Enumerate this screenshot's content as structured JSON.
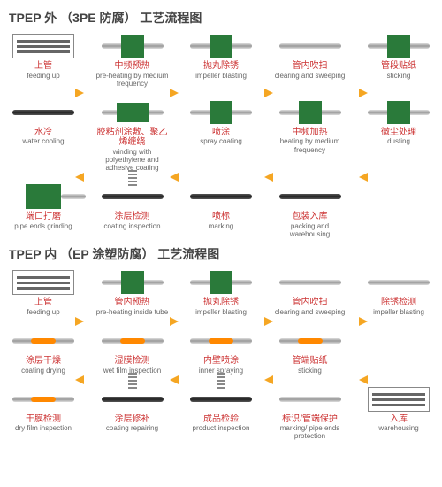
{
  "section1": {
    "title": "TPEP 外 （3PE 防腐） 工艺流程图",
    "rows": [
      [
        {
          "cn": "上管",
          "en": "feeding up",
          "icon": "rack"
        },
        {
          "cn": "中频预热",
          "en": "pre-heating by medium frequency",
          "icon": "pipe-block"
        },
        {
          "cn": "抛丸除锈",
          "en": "impeller blasting",
          "icon": "pipe-block"
        },
        {
          "cn": "管内吹扫",
          "en": "clearing and sweeping",
          "icon": "pipe"
        },
        {
          "cn": "管段贴纸",
          "en": "sticking",
          "icon": "pipe-block"
        }
      ],
      [
        {
          "cn": "水冷",
          "en": "water cooling",
          "icon": "pipe-dark"
        },
        {
          "cn": "胶粘剂涂敷、聚乙烯缠绕",
          "en": "winding with polyethylene and adhesive coating",
          "icon": "pipe-block2"
        },
        {
          "cn": "喷涂",
          "en": "spray coating",
          "icon": "pipe-block"
        },
        {
          "cn": "中频加热",
          "en": "heating by medium frequency",
          "icon": "pipe-block"
        },
        {
          "cn": "微尘处理",
          "en": "dusting",
          "icon": "pipe-block"
        }
      ],
      [
        {
          "cn": "端口打磨",
          "en": "pipe ends grinding",
          "icon": "machine"
        },
        {
          "cn": "涂层检测",
          "en": "coating inspection",
          "icon": "pipe-spring"
        },
        {
          "cn": "喷标",
          "en": "marking",
          "icon": "pipe-dark"
        },
        {
          "cn": "包装入库",
          "en": "packing and warehousing",
          "icon": "pipe-dark"
        },
        {
          "cn": "",
          "en": "",
          "icon": "none"
        }
      ]
    ],
    "arrow_dirs": [
      "r",
      "l",
      "r"
    ]
  },
  "section2": {
    "title": "TPEP 内 （EP 涂塑防腐） 工艺流程图",
    "rows": [
      [
        {
          "cn": "上管",
          "en": "feeding up",
          "icon": "rack"
        },
        {
          "cn": "管内预热",
          "en": "pre-heating inside tube",
          "icon": "pipe-block"
        },
        {
          "cn": "抛丸除锈",
          "en": "impeller blasting",
          "icon": "pipe-block"
        },
        {
          "cn": "管内吹扫",
          "en": "clearing and sweeping",
          "icon": "pipe"
        },
        {
          "cn": "除锈检测",
          "en": "impeller blasting",
          "icon": "pipe"
        }
      ],
      [
        {
          "cn": "涂层干燥",
          "en": "coating drying",
          "icon": "pipe-orange"
        },
        {
          "cn": "湿膜检测",
          "en": "wet film inspection",
          "icon": "pipe-orange"
        },
        {
          "cn": "内壁喷涂",
          "en": "inner spraying",
          "icon": "pipe-orange"
        },
        {
          "cn": "管端贴纸",
          "en": "sticking",
          "icon": "pipe-orange"
        },
        {
          "cn": "",
          "en": "",
          "icon": "none"
        }
      ],
      [
        {
          "cn": "干膜检测",
          "en": "dry film inspection",
          "icon": "pipe-orange"
        },
        {
          "cn": "涂层修补",
          "en": "coating repairing",
          "icon": "pipe-spring"
        },
        {
          "cn": "成品检验",
          "en": "product inspection",
          "icon": "pipe-spring"
        },
        {
          "cn": "标识/管端保护",
          "en": "marking/ pipe ends protection",
          "icon": "pipe"
        },
        {
          "cn": "入库",
          "en": "warehousing",
          "icon": "rack"
        }
      ]
    ],
    "arrow_dirs": [
      "r",
      "l",
      "r"
    ]
  },
  "colors": {
    "arrow": "#f5a623",
    "block": "#2a7a3a",
    "cn": "#c33",
    "en": "#666"
  }
}
